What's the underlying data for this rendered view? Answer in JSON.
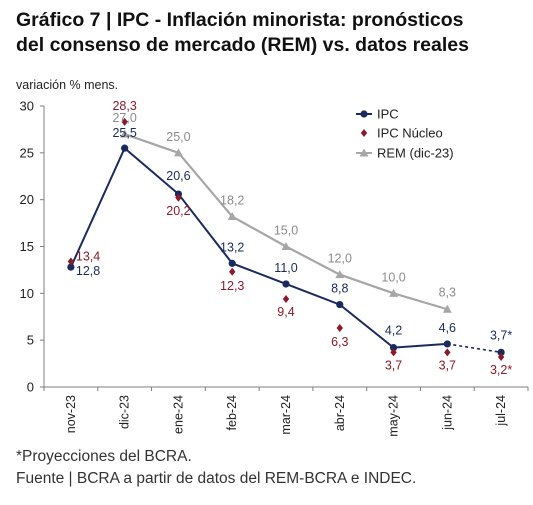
{
  "header": {
    "title_line1": "Gráfico 7 | IPC - Inflación minorista: pronósticos",
    "title_line2": "del consenso de mercado (REM) vs. datos reales"
  },
  "chart_data": {
    "type": "line",
    "ylabel": "variación % mens.",
    "ylim": [
      0,
      30
    ],
    "yticks": [
      0,
      5,
      10,
      15,
      20,
      25,
      30
    ],
    "categories": [
      "nov-23",
      "dic-23",
      "ene-24",
      "feb-24",
      "mar-24",
      "abr-24",
      "may-24",
      "jun-24",
      "jul-24"
    ],
    "legend_position": "top-right",
    "grid": false,
    "series": [
      {
        "name": "IPC",
        "color": "#1b2a5e",
        "marker": "circle",
        "values": [
          12.8,
          25.5,
          20.6,
          13.2,
          11.0,
          8.8,
          4.2,
          4.6,
          3.7
        ],
        "labels": [
          "12,8",
          "25,5",
          "20,6",
          "13,2",
          "11,0",
          "8,8",
          "4,2",
          "4,6",
          "3,7*"
        ],
        "projected_from_index": 7
      },
      {
        "name": "IPC Núcleo",
        "color": "#8b1a2b",
        "marker": "diamond",
        "values": [
          13.4,
          28.3,
          20.2,
          12.3,
          9.4,
          6.3,
          3.7,
          3.7,
          3.2
        ],
        "labels": [
          "13,4",
          "28,3",
          "20,2",
          "12,3",
          "9,4",
          "6,3",
          "3,7",
          "3,7",
          "3,2*"
        ]
      },
      {
        "name": "REM (dic-23)",
        "color": "#a6a6a6",
        "marker": "triangle",
        "values": [
          null,
          27.0,
          25.0,
          18.2,
          15.0,
          12.0,
          10.0,
          8.3,
          null
        ],
        "labels": [
          null,
          "27,0",
          "25,0",
          "18,2",
          "15,0",
          "12,0",
          "10,0",
          "8,3",
          null
        ]
      }
    ]
  },
  "footer": {
    "note": "*Proyecciones del BCRA.",
    "source": "Fuente | BCRA a partir de datos del REM-BCRA e INDEC."
  }
}
